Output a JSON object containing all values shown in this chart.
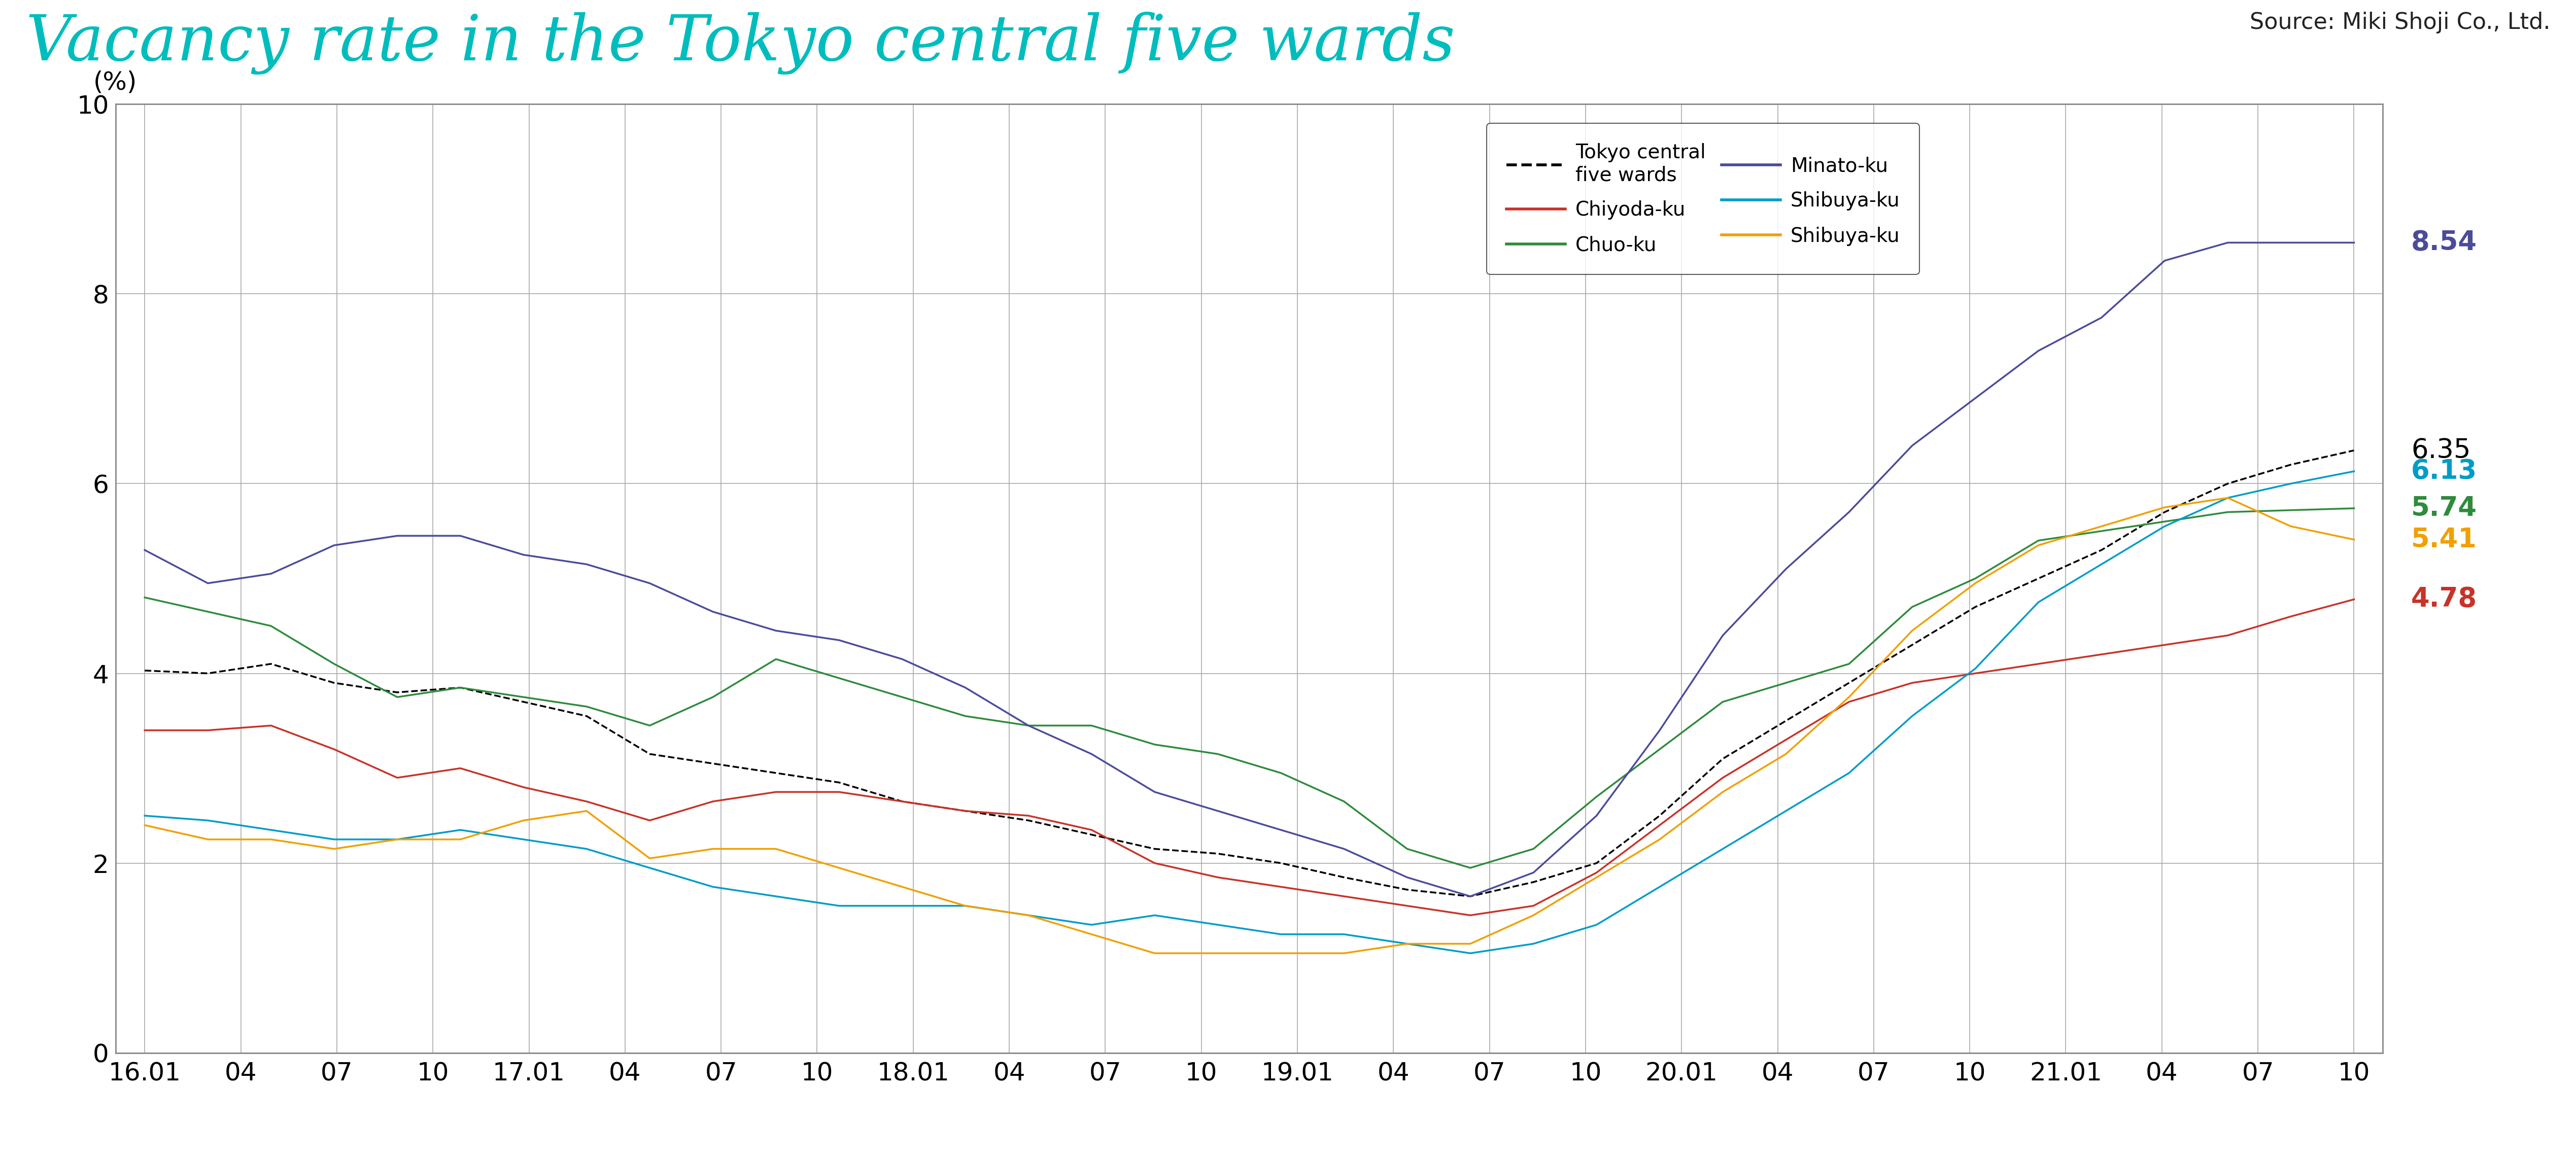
{
  "title": "Vacancy rate in the Tokyo central five wards",
  "title_color": "#00BDBD",
  "source_text": "Source: Miki Shoji Co., Ltd.",
  "ylabel": "(%)",
  "ylim": [
    0,
    10
  ],
  "yticks": [
    0,
    2,
    4,
    6,
    8,
    10
  ],
  "background_color": "#ffffff",
  "x_labels": [
    "16.01",
    "04",
    "07",
    "10",
    "17.01",
    "04",
    "07",
    "10",
    "18.01",
    "04",
    "07",
    "10",
    "19.01",
    "04",
    "07",
    "10",
    "20.01",
    "04",
    "07",
    "10",
    "21.01",
    "04",
    "07",
    "10"
  ],
  "end_values_ordered": [
    {
      "key": "Minato-ku",
      "value": 8.54,
      "color": "#4B4B9B"
    },
    {
      "key": "overall",
      "value": 6.35,
      "color": "#000000"
    },
    {
      "key": "Shibuya_blue",
      "value": 6.13,
      "color": "#009CC8"
    },
    {
      "key": "Chuo-ku",
      "value": 5.74,
      "color": "#2E8B3C"
    },
    {
      "key": "Shibuya_orange",
      "value": 5.41,
      "color": "#F0A000"
    },
    {
      "key": "Chiyoda-ku",
      "value": 4.78,
      "color": "#C83228"
    }
  ],
  "series": {
    "overall": {
      "color": "#000000",
      "linewidth": 2.5,
      "linestyle": "dashed",
      "data": [
        4.03,
        4.0,
        4.1,
        3.9,
        3.8,
        3.85,
        3.7,
        3.55,
        3.15,
        3.05,
        2.95,
        2.85,
        2.65,
        2.55,
        2.45,
        2.3,
        2.15,
        2.1,
        2.0,
        1.85,
        1.72,
        1.65,
        1.8,
        2.0,
        2.5,
        3.1,
        3.5,
        3.9,
        4.3,
        4.7,
        5.0,
        5.3,
        5.7,
        6.0,
        6.2,
        6.35
      ]
    },
    "Chiyoda-ku": {
      "color": "#C83228",
      "linewidth": 2.5,
      "linestyle": "solid",
      "data": [
        3.4,
        3.4,
        3.45,
        3.2,
        2.9,
        3.0,
        2.8,
        2.65,
        2.45,
        2.65,
        2.75,
        2.75,
        2.65,
        2.55,
        2.5,
        2.35,
        2.0,
        1.85,
        1.75,
        1.65,
        1.55,
        1.45,
        1.55,
        1.9,
        2.4,
        2.9,
        3.3,
        3.7,
        3.9,
        4.0,
        4.1,
        4.2,
        4.3,
        4.4,
        4.6,
        4.78
      ]
    },
    "Chuo-ku": {
      "color": "#2E8B3C",
      "linewidth": 2.5,
      "linestyle": "solid",
      "data": [
        4.8,
        4.65,
        4.5,
        4.1,
        3.75,
        3.85,
        3.75,
        3.65,
        3.45,
        3.75,
        4.15,
        3.95,
        3.75,
        3.55,
        3.45,
        3.45,
        3.25,
        3.15,
        2.95,
        2.65,
        2.15,
        1.95,
        2.15,
        2.7,
        3.2,
        3.7,
        3.9,
        4.1,
        4.7,
        5.0,
        5.4,
        5.5,
        5.6,
        5.7,
        5.72,
        5.74
      ]
    },
    "Minato-ku": {
      "color": "#4B4B9B",
      "linewidth": 2.5,
      "linestyle": "solid",
      "data": [
        5.3,
        4.95,
        5.05,
        5.35,
        5.45,
        5.45,
        5.25,
        5.15,
        4.95,
        4.65,
        4.45,
        4.35,
        4.15,
        3.85,
        3.45,
        3.15,
        2.75,
        2.55,
        2.35,
        2.15,
        1.85,
        1.65,
        1.9,
        2.5,
        3.4,
        4.4,
        5.1,
        5.7,
        6.4,
        6.9,
        7.4,
        7.75,
        8.35,
        8.54,
        8.54,
        8.54
      ]
    },
    "Shibuya_blue": {
      "color": "#009CC8",
      "linewidth": 2.5,
      "linestyle": "solid",
      "data": [
        2.5,
        2.45,
        2.35,
        2.25,
        2.25,
        2.35,
        2.25,
        2.15,
        1.95,
        1.75,
        1.65,
        1.55,
        1.55,
        1.55,
        1.45,
        1.35,
        1.45,
        1.35,
        1.25,
        1.25,
        1.15,
        1.05,
        1.15,
        1.35,
        1.75,
        2.15,
        2.55,
        2.95,
        3.55,
        4.05,
        4.75,
        5.15,
        5.55,
        5.85,
        6.0,
        6.13
      ]
    },
    "Shibuya_orange": {
      "color": "#F0A000",
      "linewidth": 2.5,
      "linestyle": "solid",
      "data": [
        2.4,
        2.25,
        2.25,
        2.15,
        2.25,
        2.25,
        2.45,
        2.55,
        2.05,
        2.15,
        2.15,
        1.95,
        1.75,
        1.55,
        1.45,
        1.25,
        1.05,
        1.05,
        1.05,
        1.05,
        1.15,
        1.15,
        1.45,
        1.85,
        2.25,
        2.75,
        3.15,
        3.75,
        4.45,
        4.95,
        5.35,
        5.55,
        5.75,
        5.85,
        5.55,
        5.41
      ]
    }
  }
}
